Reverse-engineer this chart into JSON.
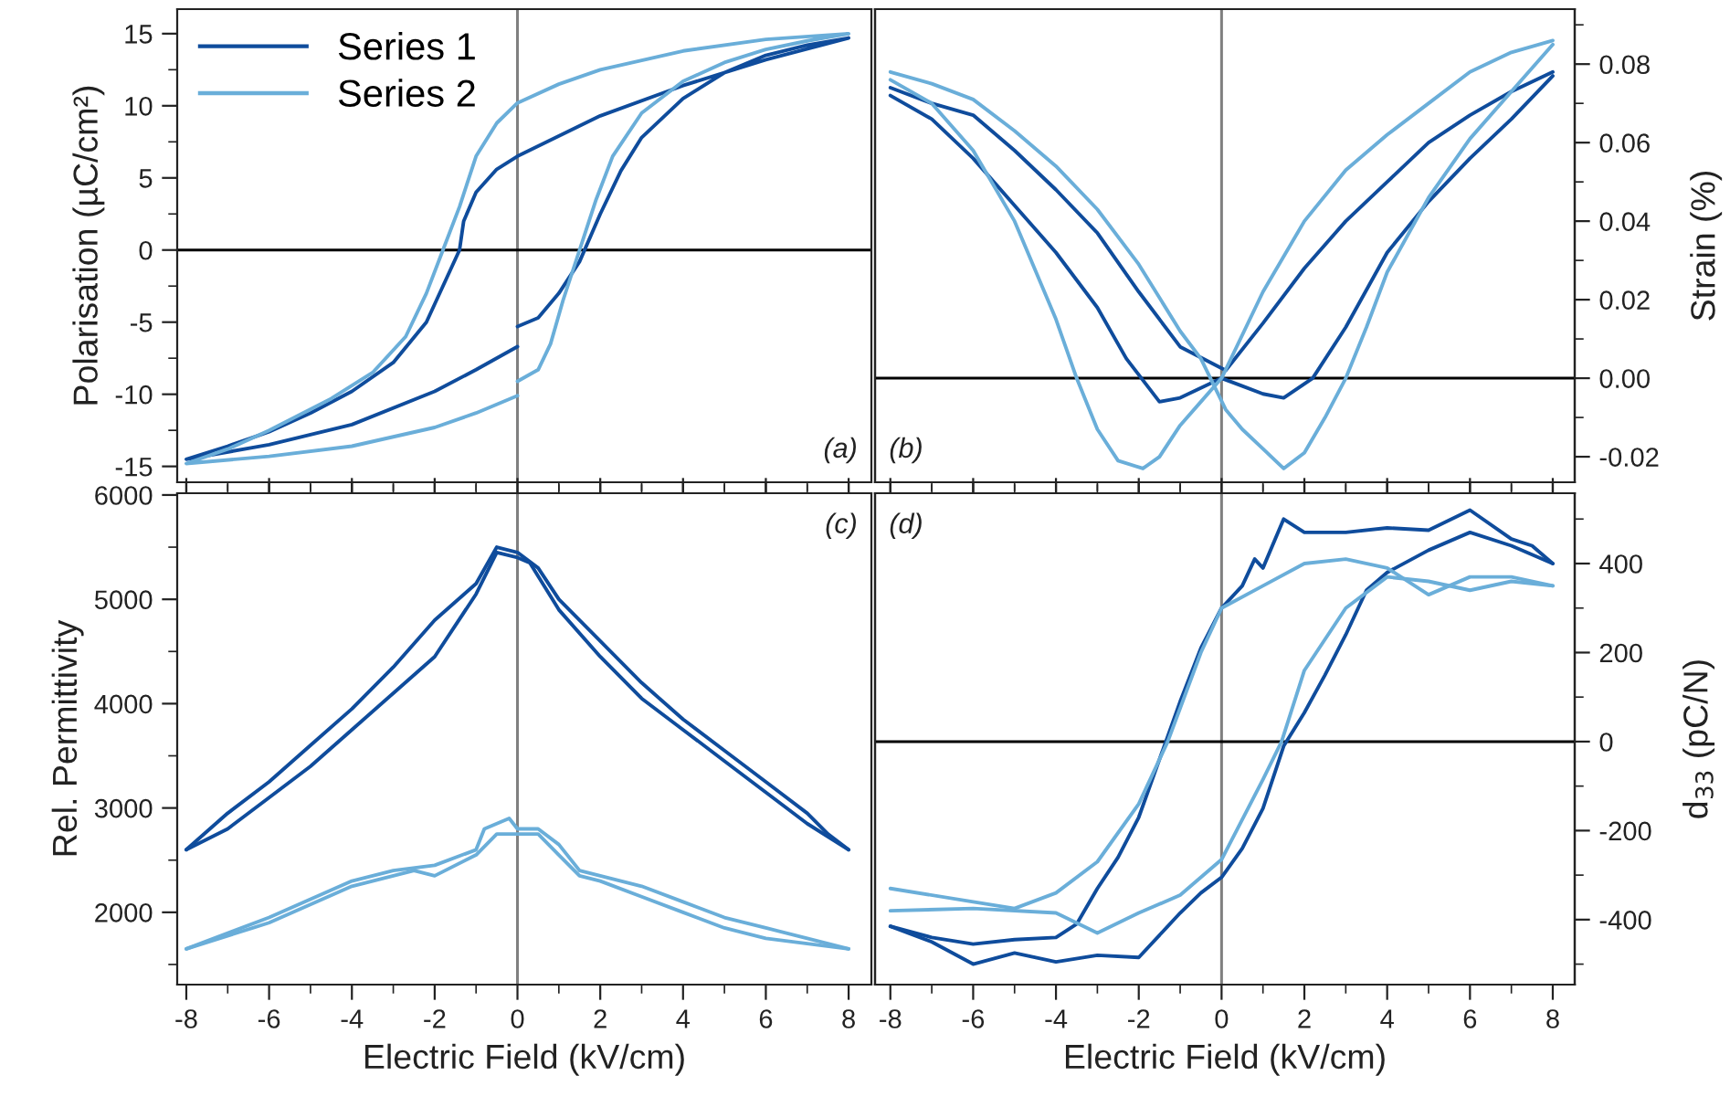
{
  "chart_data": [
    {
      "type": "line",
      "ylabel": "Polarisation (µC/cm²)",
      "xlim": [
        -8.22,
        8.55
      ],
      "ylim": [
        -16.1,
        16.7
      ],
      "tick_labels": "y",
      "legend": "top left",
      "annotations": [
        "(a)"
      ],
      "xticks": [
        -8,
        {
          "value": -7,
          "label": null
        },
        -6,
        {
          "value": -5,
          "label": null
        },
        -4,
        {
          "value": -3,
          "label": null
        },
        -2,
        {
          "value": -1,
          "label": null
        },
        0,
        {
          "value": 1,
          "label": null
        },
        2,
        {
          "value": 3,
          "label": null
        },
        4,
        {
          "value": 5,
          "label": null
        },
        6,
        {
          "value": 7,
          "label": null
        },
        8
      ],
      "yticks": [
        -15,
        {
          "value": -12.5,
          "label": null
        },
        -10,
        {
          "value": -7.5,
          "label": null
        },
        -5,
        {
          "value": -2.5,
          "label": null
        },
        0,
        {
          "value": 2.5,
          "label": null
        },
        5,
        {
          "value": 7.5,
          "label": null
        },
        10,
        {
          "value": 12.5,
          "label": null
        },
        15
      ],
      "ref_lines": [
        {
          "axis": "x",
          "value": 0,
          "color": "#808080"
        },
        {
          "axis": "y",
          "value": 0,
          "color": "#000000"
        }
      ],
      "series": [
        {
          "name": "Series 1",
          "color": "#0f4c9c",
          "x": [
            0,
            0.5,
            1,
            1.5,
            2,
            2.5,
            3,
            4,
            5,
            6,
            7,
            8,
            6,
            4,
            2,
            0,
            -0.5,
            -1,
            -1.3,
            -1.4,
            -1.8,
            -2.2,
            -3,
            -4,
            -5,
            -6,
            -7,
            -8,
            -6,
            -4,
            -2,
            -1,
            0
          ],
          "values": [
            -5.3,
            -4.7,
            -3,
            -0.8,
            2.5,
            5.5,
            7.8,
            10.5,
            12.3,
            13.5,
            14.2,
            14.7,
            13.2,
            11.4,
            9.3,
            6.5,
            5.6,
            4,
            2,
            0,
            -2.5,
            -5,
            -7.8,
            -9.8,
            -11.3,
            -12.6,
            -13.6,
            -14.5,
            -13.5,
            -12.1,
            -9.8,
            -8.3,
            -6.7
          ]
        },
        {
          "name": "Series 2",
          "color": "#6aaed9",
          "x": [
            0,
            0.5,
            0.8,
            1.1,
            1.5,
            1.9,
            2.3,
            3,
            4,
            5,
            6,
            7,
            8,
            6,
            4,
            2,
            1,
            0,
            -0.5,
            -1,
            -1.4,
            -1.8,
            -2.2,
            -2.7,
            -3.5,
            -4.5,
            -6,
            -7,
            -8,
            -6,
            -4,
            -2,
            -1,
            0
          ],
          "values": [
            -9.1,
            -8.3,
            -6.5,
            -3.5,
            0,
            3.5,
            6.5,
            9.5,
            11.7,
            13,
            13.9,
            14.5,
            15,
            14.6,
            13.8,
            12.5,
            11.5,
            10.2,
            8.8,
            6.5,
            3,
            0,
            -3,
            -6,
            -8.5,
            -10.3,
            -12.5,
            -13.8,
            -14.8,
            -14.3,
            -13.6,
            -12.3,
            -11.3,
            -10.1
          ]
        }
      ]
    },
    {
      "type": "line",
      "y2label": "Strain (%)",
      "xlim": [
        -8.37,
        8.53
      ],
      "y2lim": [
        -0.0265,
        0.094
      ],
      "tick_labels": "y",
      "annotations": [
        "(b)"
      ],
      "xticks": [
        -8,
        {
          "value": -7,
          "label": null
        },
        -6,
        {
          "value": -5,
          "label": null
        },
        -4,
        {
          "value": -3,
          "label": null
        },
        -2,
        {
          "value": -1,
          "label": null
        },
        0,
        {
          "value": 1,
          "label": null
        },
        2,
        {
          "value": 3,
          "label": null
        },
        4,
        {
          "value": 5,
          "label": null
        },
        6,
        {
          "value": 7,
          "label": null
        },
        8
      ],
      "y2ticks": [
        -0.02,
        {
          "value": -0.01,
          "label": null
        },
        {
          "value": 0,
          "label": "0.00"
        },
        {
          "value": 0.01,
          "label": null
        },
        0.02,
        {
          "value": 0.03,
          "label": null
        },
        0.04,
        {
          "value": 0.05,
          "label": null
        },
        0.06,
        {
          "value": 0.07,
          "label": null
        },
        0.08,
        {
          "value": 0.09,
          "label": null
        }
      ],
      "ref_lines": [
        {
          "axis": "x",
          "value": 0,
          "color": "#808080"
        },
        {
          "axis": "y2",
          "value": 0,
          "color": "#000000"
        }
      ],
      "series": [
        {
          "axis": "y2",
          "color": "#0f4c9c",
          "x": [
            -8,
            -7,
            -6,
            -5,
            -4,
            -3,
            -2.3,
            -1.5,
            -1,
            0,
            0.5,
            1,
            1.5,
            2.2,
            3,
            4,
            5,
            6,
            7,
            8
          ],
          "values": [
            0.072,
            0.066,
            0.056,
            0.044,
            0.032,
            0.018,
            0.005,
            -0.006,
            -0.005,
            0,
            -0.002,
            -0.004,
            -0.005,
            0,
            0.013,
            0.032,
            0.045,
            0.056,
            0.066,
            0.077
          ]
        },
        {
          "axis": "y2",
          "color": "#0f4c9c",
          "x": [
            -8,
            -7,
            -6,
            -5,
            -4,
            -3,
            -2,
            -1,
            0.1,
            1,
            2,
            3,
            4,
            5,
            6,
            7,
            8
          ],
          "values": [
            0.074,
            0.07,
            0.067,
            0.058,
            0.048,
            0.037,
            0.022,
            0.008,
            0.002,
            0.014,
            0.028,
            0.04,
            0.05,
            0.06,
            0.067,
            0.073,
            0.078
          ]
        },
        {
          "axis": "y2",
          "color": "#6aaed9",
          "x": [
            -8,
            -7,
            -6,
            -5,
            -4,
            -3.5,
            -3,
            -2.5,
            -1.9,
            -1.5,
            -1,
            -0.5,
            0,
            1,
            2,
            3,
            4,
            5,
            6,
            7,
            8
          ],
          "values": [
            0.076,
            0.07,
            0.058,
            0.04,
            0.015,
            0,
            -0.013,
            -0.021,
            -0.023,
            -0.02,
            -0.012,
            -0.006,
            0,
            0.022,
            0.04,
            0.053,
            0.062,
            0.07,
            0.078,
            0.083,
            0.086
          ]
        },
        {
          "axis": "y2",
          "color": "#6aaed9",
          "x": [
            -8,
            -7,
            -6,
            -5,
            -4,
            -3,
            -2,
            -1,
            -0.5,
            0.1,
            0.5,
            1,
            1.5,
            2,
            2.5,
            3,
            3.5,
            4,
            5,
            6,
            7,
            8
          ],
          "values": [
            0.078,
            0.075,
            0.071,
            0.063,
            0.054,
            0.043,
            0.029,
            0.012,
            0.005,
            -0.008,
            -0.013,
            -0.018,
            -0.023,
            -0.019,
            -0.01,
            0,
            0.013,
            0.027,
            0.046,
            0.061,
            0.073,
            0.085
          ]
        }
      ]
    },
    {
      "type": "line",
      "xlabel": "Electric Field (kV/cm)",
      "ylabel": "Rel. Permittivity",
      "xlim": [
        -8.22,
        8.55
      ],
      "ylim": [
        1307,
        6017
      ],
      "annotations": [
        "(c)"
      ],
      "xticks": [
        -8,
        {
          "value": -7,
          "label": null
        },
        -6,
        {
          "value": -5,
          "label": null
        },
        -4,
        {
          "value": -3,
          "label": null
        },
        -2,
        {
          "value": -1,
          "label": null
        },
        0,
        {
          "value": 1,
          "label": null
        },
        2,
        {
          "value": 3,
          "label": null
        },
        4,
        {
          "value": 5,
          "label": null
        },
        6,
        {
          "value": 7,
          "label": null
        },
        8
      ],
      "yticks": [
        {
          "value": 1500,
          "label": null
        },
        2000,
        {
          "value": 2500,
          "label": null
        },
        3000,
        {
          "value": 3500,
          "label": null
        },
        4000,
        {
          "value": 4500,
          "label": null
        },
        5000,
        {
          "value": 5500,
          "label": null
        },
        6000
      ],
      "ref_lines": [
        {
          "axis": "x",
          "value": 0,
          "color": "#808080"
        }
      ],
      "series": [
        {
          "color": "#0f4c9c",
          "x": [
            -8,
            -7,
            -6,
            -5,
            -4,
            -3,
            -2,
            -1,
            -0.5,
            0,
            0.5,
            1,
            2,
            3,
            4,
            5,
            6,
            7,
            7.5,
            8
          ],
          "values": [
            2600,
            2950,
            3250,
            3600,
            3950,
            4350,
            4800,
            5150,
            5500,
            5450,
            5300,
            5000,
            4600,
            4200,
            3850,
            3550,
            3250,
            2950,
            2750,
            2600
          ]
        },
        {
          "color": "#0f4c9c",
          "x": [
            -8,
            -7,
            -6,
            -5,
            -4,
            -3,
            -2,
            -1,
            -0.5,
            0,
            0.3,
            1,
            2,
            3,
            4,
            5,
            6,
            7,
            8
          ],
          "values": [
            2600,
            2800,
            3100,
            3400,
            3750,
            4100,
            4450,
            5050,
            5450,
            5400,
            5350,
            4900,
            4450,
            4050,
            3750,
            3450,
            3150,
            2850,
            2600
          ]
        },
        {
          "color": "#6aaed9",
          "x": [
            -8,
            -6,
            -4,
            -3,
            -2,
            -1,
            -0.8,
            -0.2,
            0,
            0.5,
            1,
            1.5,
            2,
            3,
            4,
            5,
            6,
            7,
            8
          ],
          "values": [
            1650,
            1950,
            2300,
            2400,
            2450,
            2600,
            2800,
            2900,
            2800,
            2800,
            2650,
            2400,
            2350,
            2250,
            2100,
            1950,
            1850,
            1750,
            1650
          ]
        },
        {
          "color": "#6aaed9",
          "x": [
            -8,
            -6,
            -4,
            -3,
            -2.5,
            -2,
            -1,
            -0.5,
            0,
            0.5,
            1,
            1.5,
            2,
            3,
            4,
            5,
            6,
            7,
            8
          ],
          "values": [
            1650,
            1900,
            2250,
            2350,
            2400,
            2350,
            2550,
            2750,
            2750,
            2750,
            2550,
            2350,
            2300,
            2150,
            2000,
            1850,
            1750,
            1700,
            1650
          ]
        }
      ]
    },
    {
      "type": "line",
      "xlabel": "Electric Field (kV/cm)",
      "y2label": "d$_{33}$ (pC/N)",
      "xlim": [
        -8.37,
        8.53
      ],
      "y2lim": [
        -546,
        558
      ],
      "annotations": [
        "(d)"
      ],
      "xticks": [
        -8,
        {
          "value": -7,
          "label": null
        },
        -6,
        {
          "value": -5,
          "label": null
        },
        -4,
        {
          "value": -3,
          "label": null
        },
        -2,
        {
          "value": -1,
          "label": null
        },
        0,
        {
          "value": 1,
          "label": null
        },
        2,
        {
          "value": 3,
          "label": null
        },
        4,
        {
          "value": 5,
          "label": null
        },
        6,
        {
          "value": 7,
          "label": null
        },
        8
      ],
      "y2ticks": [
        {
          "value": -500,
          "label": null
        },
        -400,
        {
          "value": -300,
          "label": null
        },
        -200,
        {
          "value": -100,
          "label": null
        },
        0,
        {
          "value": 100,
          "label": null
        },
        200,
        {
          "value": 300,
          "label": null
        },
        400,
        {
          "value": 500,
          "label": null
        }
      ],
      "ref_lines": [
        {
          "axis": "x",
          "value": 0,
          "color": "#808080"
        },
        {
          "axis": "y2",
          "value": 0,
          "color": "#000000"
        }
      ],
      "series": [
        {
          "axis": "y2",
          "color": "#0f4c9c",
          "x": [
            -8,
            -7,
            -6,
            -5,
            -4,
            -3.5,
            -3,
            -2.5,
            -2,
            -1.5,
            -1,
            -0.5,
            0,
            0.5,
            0.8,
            1,
            1.5,
            2,
            3,
            4,
            5,
            6,
            7,
            7.5,
            8
          ],
          "values": [
            -415,
            -440,
            -455,
            -445,
            -440,
            -410,
            -330,
            -260,
            -170,
            -40,
            90,
            210,
            300,
            350,
            410,
            390,
            500,
            470,
            470,
            480,
            475,
            520,
            455,
            440,
            400
          ]
        },
        {
          "axis": "y2",
          "color": "#0f4c9c",
          "x": [
            -8,
            -7,
            -6,
            -5,
            -4,
            -3,
            -2,
            -1,
            -0.5,
            0,
            0.5,
            1,
            1.5,
            2,
            2.5,
            3,
            3.5,
            4,
            5,
            6,
            7,
            8
          ],
          "values": [
            -415,
            -450,
            -500,
            -475,
            -495,
            -480,
            -485,
            -385,
            -340,
            -305,
            -240,
            -150,
            -10,
            65,
            150,
            240,
            340,
            380,
            430,
            470,
            440,
            400
          ]
        },
        {
          "axis": "y2",
          "color": "#6aaed9",
          "x": [
            -8,
            -6,
            -5,
            -4,
            -3,
            -2,
            -1.3,
            -0.5,
            0,
            1,
            2,
            3,
            4,
            5,
            6,
            7,
            8
          ],
          "values": [
            -330,
            -360,
            -375,
            -340,
            -270,
            -140,
            0,
            200,
            300,
            350,
            400,
            410,
            390,
            330,
            370,
            370,
            350
          ]
        },
        {
          "axis": "y2",
          "color": "#6aaed9",
          "x": [
            -8,
            -6,
            -4,
            -3,
            -2,
            -1,
            0,
            1,
            1.45,
            2,
            3,
            4,
            5,
            6,
            7,
            8
          ],
          "values": [
            -380,
            -375,
            -385,
            -430,
            -385,
            -345,
            -265,
            -85,
            0,
            160,
            300,
            370,
            360,
            340,
            360,
            350
          ]
        }
      ]
    }
  ]
}
